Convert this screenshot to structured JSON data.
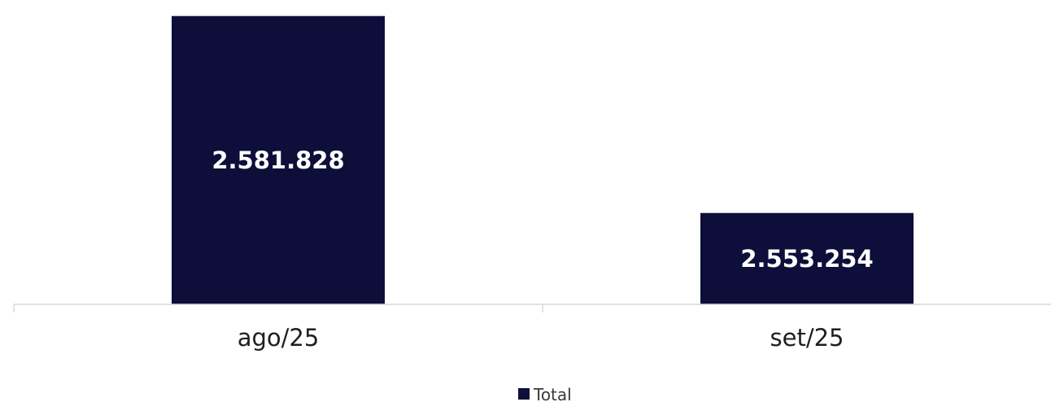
{
  "chart_data": {
    "type": "bar",
    "categories": [
      "ago/25",
      "set/25"
    ],
    "series": [
      {
        "name": "Total",
        "values": [
          2581828,
          2553254
        ],
        "labels": [
          "2.581.828",
          "2.553.254"
        ],
        "color": "#0e0e3b"
      }
    ],
    "title": "",
    "xlabel": "",
    "ylabel": "",
    "ylim": [
      2540000,
      2582500
    ],
    "grid": false,
    "legend": "bottom-center",
    "axis_color": "#d9d9d9"
  }
}
